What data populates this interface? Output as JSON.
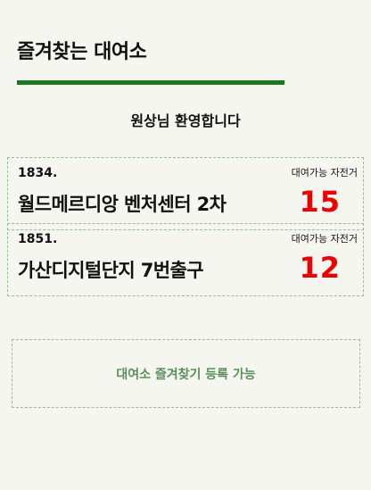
{
  "header": {
    "title": "즐겨찾는 대여소",
    "accent_color": "#1b7a1f"
  },
  "welcome": "원상님 환영합니다",
  "stations": [
    {
      "id": "1834.",
      "name": "월드메르디앙 벤처센터 2차",
      "available_label": "대여가능 자전거",
      "available_count": "15"
    },
    {
      "id": "1851.",
      "name": "가산디지털단지 7번출구",
      "available_label": "대여가능 자전거",
      "available_count": "12"
    }
  ],
  "add_favorite": {
    "label": "대여소 즐겨찾기 등록 가능"
  },
  "colors": {
    "count": "#ee0000",
    "border": "#8fc28f",
    "add_text": "#5a8f5a",
    "background": "#f6f6f1"
  }
}
